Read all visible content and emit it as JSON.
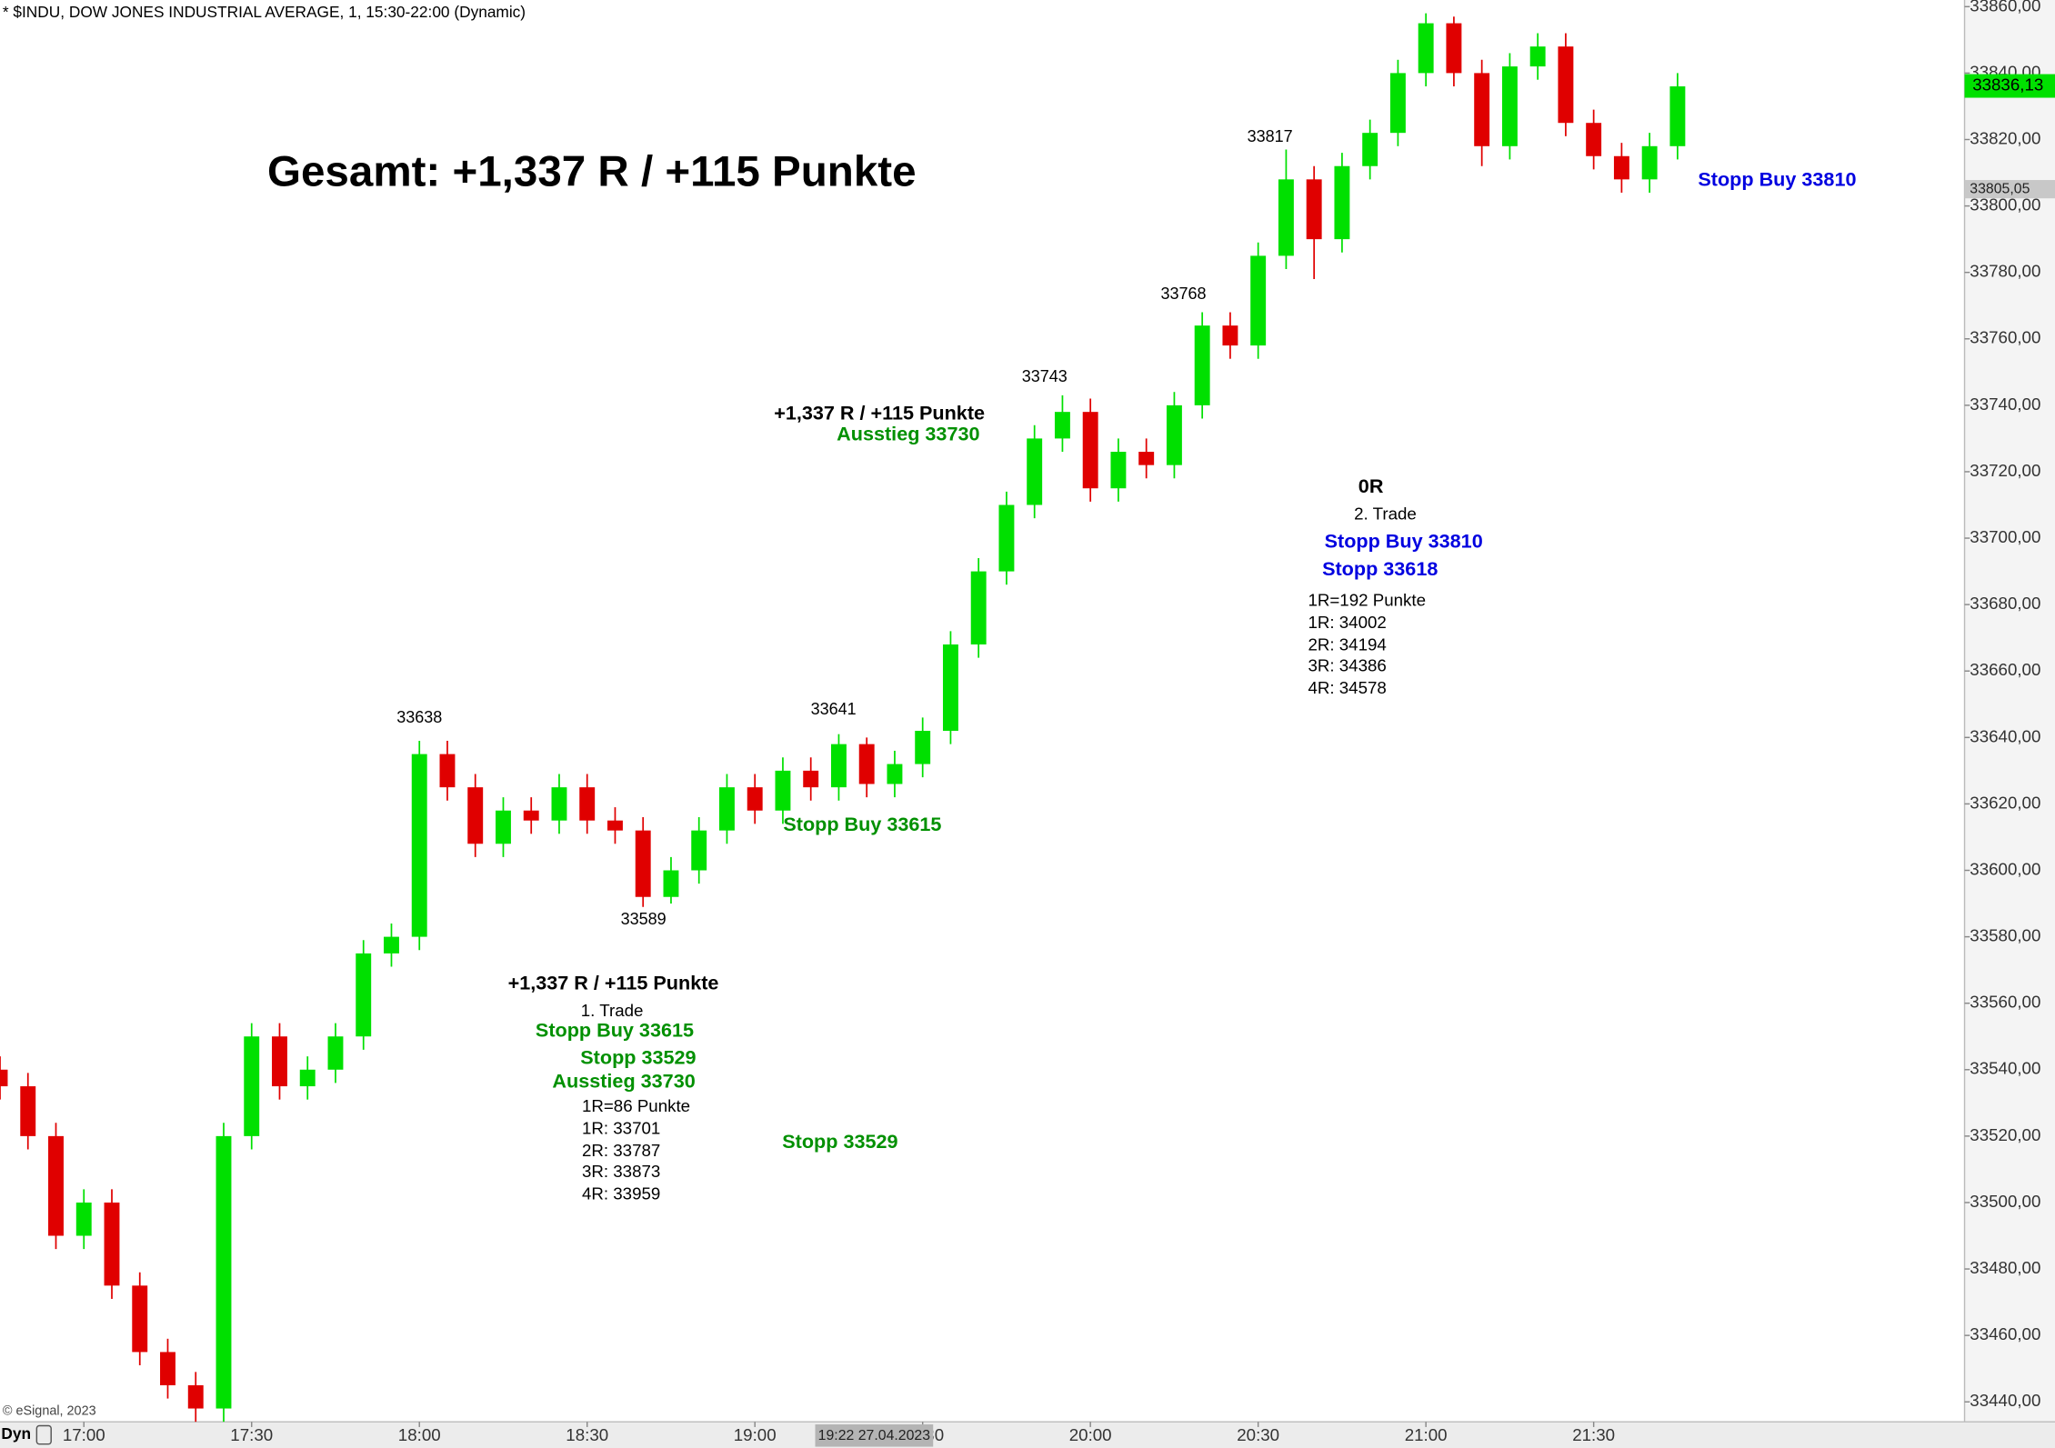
{
  "chart_data": {
    "type": "candlestick",
    "title": "* $INDU, DOW JONES INDUSTRIAL AVERAGE, 1, 15:30-22:00 (Dynamic)",
    "credit": "© eSignal, 2023",
    "corner_label": "Dyn",
    "crosshair_label": "19:22 27.04.2023",
    "up_color": "#00e000",
    "down_color": "#e00000",
    "x": [
      "16:45",
      "16:50",
      "16:55",
      "17:00",
      "17:05",
      "17:10",
      "17:15",
      "17:20",
      "17:25",
      "17:30",
      "17:35",
      "17:40",
      "17:45",
      "17:50",
      "17:55",
      "18:00",
      "18:05",
      "18:10",
      "18:15",
      "18:20",
      "18:25",
      "18:30",
      "18:35",
      "18:40",
      "18:45",
      "18:50",
      "18:55",
      "19:00",
      "19:05",
      "19:10",
      "19:15",
      "19:20",
      "19:25",
      "19:30",
      "19:35",
      "19:40",
      "19:45",
      "19:50",
      "19:55",
      "20:00",
      "20:05",
      "20:10",
      "20:15",
      "20:20",
      "20:25",
      "20:30",
      "20:35",
      "20:40",
      "20:45",
      "20:50",
      "20:55",
      "21:00",
      "21:05",
      "21:10",
      "21:15",
      "21:20",
      "21:25",
      "21:30",
      "21:35",
      "21:40",
      "21:45"
    ],
    "open": [
      33540,
      33535,
      33520,
      33490,
      33500,
      33475,
      33455,
      33445,
      33438,
      33520,
      33550,
      33535,
      33540,
      33550,
      33575,
      33580,
      33635,
      33625,
      33608,
      33618,
      33615,
      33625,
      33615,
      33612,
      33592,
      33600,
      33612,
      33625,
      33618,
      33630,
      33625,
      33638,
      33626,
      33632,
      33642,
      33668,
      33690,
      33710,
      33730,
      33738,
      33715,
      33726,
      33722,
      33740,
      33764,
      33758,
      33785,
      33808,
      33790,
      33812,
      33822,
      33840,
      33855,
      33840,
      33818,
      33842,
      33848,
      33825,
      33815,
      33808,
      33818
    ],
    "high": [
      33544,
      33539,
      33524,
      33504,
      33504,
      33479,
      33459,
      33449,
      33524,
      33554,
      33554,
      33544,
      33554,
      33579,
      33584,
      33639,
      33639,
      33629,
      33622,
      33622,
      33629,
      33629,
      33619,
      33616,
      33604,
      33616,
      33629,
      33629,
      33634,
      33634,
      33641,
      33640,
      33636,
      33646,
      33672,
      33694,
      33714,
      33734,
      33743,
      33742,
      33730,
      33730,
      33744,
      33768,
      33768,
      33789,
      33817,
      33812,
      33816,
      33826,
      33844,
      33858,
      33857,
      33844,
      33846,
      33852,
      33852,
      33829,
      33819,
      33822,
      33840
    ],
    "low": [
      33531,
      33516,
      33486,
      33486,
      33471,
      33451,
      33441,
      33434,
      33434,
      33516,
      33531,
      33531,
      33536,
      33546,
      33571,
      33576,
      33621,
      33604,
      33604,
      33611,
      33611,
      33611,
      33608,
      33589,
      33590,
      33596,
      33608,
      33614,
      33614,
      33621,
      33621,
      33622,
      33622,
      33628,
      33638,
      33664,
      33686,
      33706,
      33726,
      33711,
      33711,
      33718,
      33718,
      33736,
      33754,
      33754,
      33781,
      33778,
      33786,
      33808,
      33818,
      33836,
      33836,
      33812,
      33814,
      33838,
      33821,
      33811,
      33804,
      33804,
      33814
    ],
    "close": [
      33535,
      33520,
      33490,
      33500,
      33475,
      33455,
      33445,
      33438,
      33520,
      33550,
      33535,
      33540,
      33550,
      33575,
      33580,
      33635,
      33625,
      33608,
      33618,
      33615,
      33625,
      33615,
      33612,
      33592,
      33600,
      33612,
      33625,
      33618,
      33630,
      33625,
      33638,
      33626,
      33632,
      33642,
      33668,
      33690,
      33710,
      33730,
      33738,
      33715,
      33726,
      33722,
      33740,
      33764,
      33758,
      33785,
      33808,
      33790,
      33812,
      33822,
      33840,
      33855,
      33840,
      33818,
      33842,
      33848,
      33825,
      33815,
      33808,
      33818,
      33836
    ],
    "xticks": [
      "17:00",
      "17:30",
      "18:00",
      "18:30",
      "19:00",
      "19:30",
      "20:00",
      "20:30",
      "21:00",
      "21:30"
    ],
    "ylim": [
      33434,
      33862
    ],
    "yticks": [
      {
        "value": 33440,
        "label": "33440,00"
      },
      {
        "value": 33460,
        "label": "33460,00"
      },
      {
        "value": 33480,
        "label": "33480,00"
      },
      {
        "value": 33500,
        "label": "33500,00"
      },
      {
        "value": 33520,
        "label": "33520,00"
      },
      {
        "value": 33540,
        "label": "33540,00"
      },
      {
        "value": 33560,
        "label": "33560,00"
      },
      {
        "value": 33580,
        "label": "33580,00"
      },
      {
        "value": 33600,
        "label": "33600,00"
      },
      {
        "value": 33620,
        "label": "33620,00"
      },
      {
        "value": 33640,
        "label": "33640,00"
      },
      {
        "value": 33660,
        "label": "33660,00"
      },
      {
        "value": 33680,
        "label": "33680,00"
      },
      {
        "value": 33700,
        "label": "33700,00"
      },
      {
        "value": 33720,
        "label": "33720,00"
      },
      {
        "value": 33740,
        "label": "33740,00"
      },
      {
        "value": 33760,
        "label": "33760,00"
      },
      {
        "value": 33780,
        "label": "33780,00"
      },
      {
        "value": 33800,
        "label": "33800,00"
      },
      {
        "value": 33820,
        "label": "33820,00"
      },
      {
        "value": 33840,
        "label": "33840,00"
      },
      {
        "value": 33860,
        "label": "33860,00"
      }
    ],
    "last_price": {
      "value": 33836.13,
      "label": "33836,13"
    },
    "marker_price": {
      "value": 33805.05,
      "label": "33805,05"
    },
    "annotations": [
      "Gesamt: +1,337 R / +115 Punkte",
      "+1,337 R / +115 Punkte",
      "Ausstieg 33730",
      "33743",
      "33768",
      "33817",
      "33638",
      "33641",
      "33589",
      "Stopp Buy 33615",
      "Stopp Buy 33810",
      "0R",
      "2. Trade",
      "Stopp Buy 33810",
      "Stopp 33618",
      "1R=192 Punkte",
      "1R: 34002",
      "2R: 34194",
      "3R: 34386",
      "4R: 34578",
      "+1,337 R / +115 Punkte",
      "1. Trade",
      "Stopp Buy 33615",
      "Stopp 33529",
      "Ausstieg 33730",
      "1R=86 Punkte",
      "1R: 33701",
      "2R: 33787",
      "3R: 33873",
      "4R: 33959",
      "Stopp 33529"
    ]
  }
}
